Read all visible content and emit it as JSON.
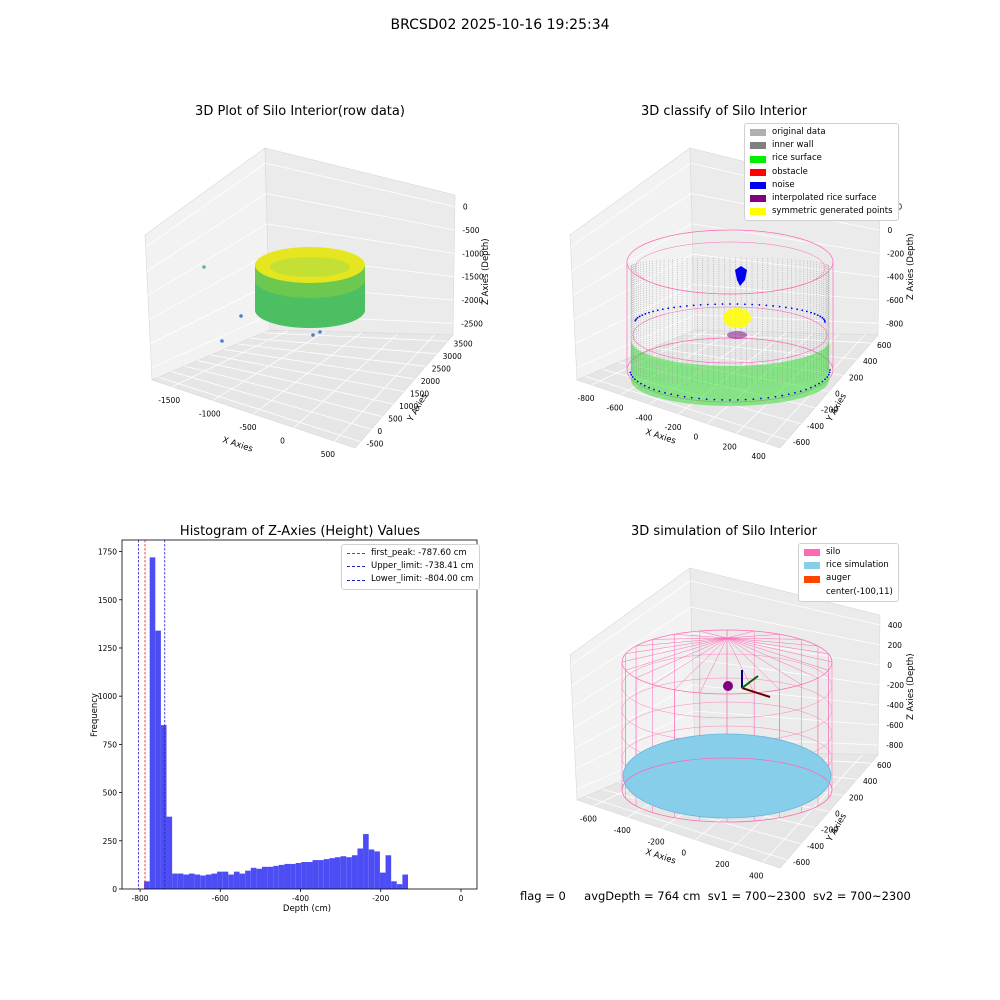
{
  "figure": {
    "title": "BRCSD02 2025-10-16 19:25:34",
    "footer": {
      "flag": "flag = 0",
      "avg_depth": "avgDepth = 764 cm",
      "sv1": "sv1 = 700~2300",
      "sv2": "sv2 = 700~2300"
    }
  },
  "colors": {
    "hist_bar": "#4d4df5",
    "first_peak_line": "#e02020",
    "limit_line": "#2020c0",
    "silo_pink": "#ff69b4",
    "rice_sim": "#87ceeb"
  },
  "chart_data": [
    {
      "type": "scatter",
      "title": "3D Plot of Silo Interior(row data)",
      "xlabel": "X Axies",
      "ylabel": "Y Axies",
      "zlabel": "Z Axies (Depth)",
      "x_ticks": [
        "-1500",
        "-1000",
        "-500",
        "0",
        "500"
      ],
      "y_ticks": [
        "-500",
        "0",
        "500",
        "1000",
        "1500",
        "2000",
        "2500",
        "3000",
        "3500"
      ],
      "z_ticks": [
        "0",
        "-500",
        "-1000",
        "-1500",
        "-2000",
        "-2500"
      ]
    },
    {
      "type": "scatter",
      "title": "3D classify of Silo Interior",
      "xlabel": "X Axies",
      "ylabel": "Y Axies",
      "zlabel": "Z Axies (Depth)",
      "x_ticks": [
        "-800",
        "-600",
        "-400",
        "-200",
        "0",
        "200",
        "400"
      ],
      "y_ticks": [
        "-600",
        "-400",
        "-200",
        "0",
        "200",
        "400",
        "600"
      ],
      "z_ticks": [
        "200",
        "0",
        "-200",
        "-400",
        "-600",
        "-800"
      ],
      "legend": [
        {
          "label": "original data",
          "color": "#b0b0b0"
        },
        {
          "label": "inner wall",
          "color": "#808080"
        },
        {
          "label": "rice surface",
          "color": "#00ee00"
        },
        {
          "label": "obstacle",
          "color": "#ff0000"
        },
        {
          "label": "noise",
          "color": "#0000ee"
        },
        {
          "label": "interpolated rice surface",
          "color": "#800080"
        },
        {
          "label": "symmetric generated points",
          "color": "#ffff00"
        }
      ]
    },
    {
      "type": "bar",
      "title": "Histogram of Z-Axies (Height) Values",
      "xlabel": "Depth (cm)",
      "ylabel": "Frequency",
      "xlim": [
        -845,
        40
      ],
      "ylim": [
        0,
        1810
      ],
      "x_ticks": [
        -800,
        -600,
        -400,
        -200,
        0
      ],
      "y_ticks": [
        0,
        250,
        500,
        750,
        1000,
        1250,
        1500,
        1750
      ],
      "bin_width": 14,
      "bin_start": -804,
      "values": [
        0,
        40,
        1720,
        1340,
        850,
        375,
        80,
        80,
        75,
        80,
        75,
        70,
        75,
        80,
        90,
        90,
        75,
        90,
        80,
        95,
        110,
        105,
        115,
        115,
        120,
        125,
        130,
        130,
        135,
        140,
        140,
        150,
        150,
        155,
        160,
        165,
        170,
        165,
        175,
        210,
        285,
        205,
        195,
        85,
        175,
        40,
        25,
        75
      ],
      "vlines": [
        {
          "label": "first_peak: -787.60 cm",
          "x": -787.6,
          "kind": "first_peak"
        },
        {
          "label": "Upper_limit: -738.41 cm",
          "x": -738.41,
          "kind": "limit"
        },
        {
          "label": "Lower_limit: -804.00 cm",
          "x": -804.0,
          "kind": "limit"
        }
      ],
      "legend_position": "top-right"
    },
    {
      "type": "scatter",
      "title": "3D simulation of Silo Interior",
      "xlabel": "X Axies",
      "ylabel": "Y Axies",
      "zlabel": "Z Axies (Depth)",
      "x_ticks": [
        "-600",
        "-400",
        "-200",
        "0",
        "200",
        "400"
      ],
      "y_ticks": [
        "-600",
        "-400",
        "-200",
        "0",
        "200",
        "400",
        "600"
      ],
      "z_ticks": [
        "400",
        "200",
        "0",
        "-200",
        "-400",
        "-600",
        "-800"
      ],
      "legend": [
        {
          "label": "silo",
          "color": "#ff69b4"
        },
        {
          "label": "rice simulation",
          "color": "#87ceeb"
        },
        {
          "label": "auger",
          "color": "#ff4500"
        },
        {
          "label": "center(-100,11)",
          "color": ""
        }
      ]
    }
  ]
}
